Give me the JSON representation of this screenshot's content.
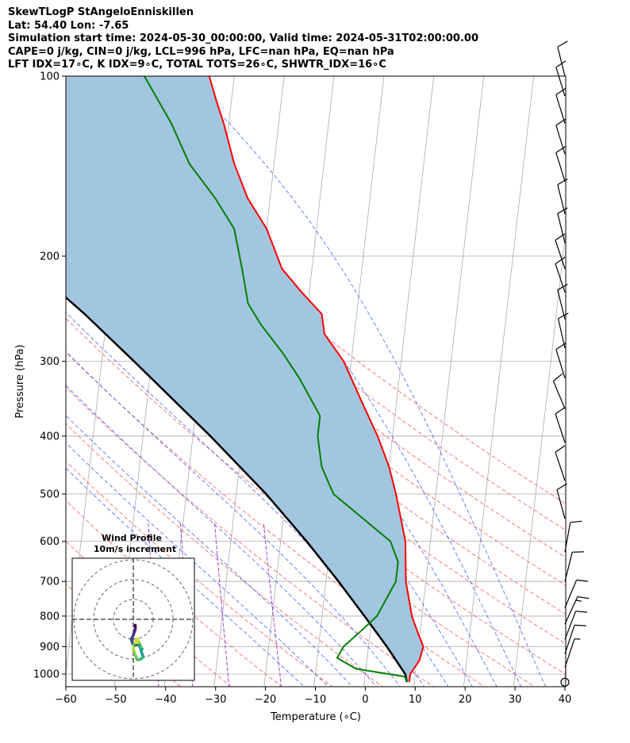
{
  "header": {
    "line1": "SkewTLogP StAngeloEnniskillen",
    "line2": "Lat: 54.40   Lon: -7.65",
    "line3": "Simulation start time: 2024-05-30_00:00:00, Valid time: 2024-05-31T02:00:00.00",
    "line4": "CAPE=0 j/kg, CIN=0 j/kg, LCL=996 hPa, LFC=nan hPa, EQ=nan hPa",
    "line5": "LFT IDX=17∘C, K IDX=9∘C, TOTAL TOTS=26∘C, SHWTR_IDX=16∘C"
  },
  "chart_data": [
    {
      "type": "line",
      "title": "",
      "xlabel": "Temperature (∘C)",
      "ylabel": "Pressure (hPa)",
      "xlim": [
        -60,
        40
      ],
      "ylim": [
        1050,
        100
      ],
      "y_scale": "log",
      "skew": "skew-T",
      "grid": true,
      "x_ticks": [
        "−60",
        "−50",
        "−40",
        "−30",
        "−20",
        "−10",
        "0",
        "10",
        "20",
        "30",
        "40"
      ],
      "y_ticks": [
        "100",
        "200",
        "300",
        "400",
        "500",
        "600",
        "700",
        "800",
        "900",
        "1000"
      ],
      "colors": {
        "temperature": "#ff0000",
        "dewpoint": "#008000",
        "parcel": "#000000",
        "shade": "#a2c6e0",
        "dry_adiabat": "#ff5555",
        "moist_adiabat": "#3355ff",
        "mixing_ratio": "#9933cc",
        "isotherm": "#aaaaaa"
      },
      "series": [
        {
          "key": "temperature",
          "points": [
            [
              1032,
              9.0
            ],
            [
              1000,
              9.0
            ],
            [
              950,
              10.5
            ],
            [
              900,
              11.0
            ],
            [
              850,
              9.5
            ],
            [
              800,
              8.0
            ],
            [
              700,
              6.0
            ],
            [
              600,
              5.0
            ],
            [
              500,
              2.0
            ],
            [
              450,
              0.0
            ],
            [
              400,
              -3.0
            ],
            [
              350,
              -7.0
            ],
            [
              300,
              -11.5
            ],
            [
              270,
              -16.0
            ],
            [
              250,
              -17.0
            ],
            [
              230,
              -21.5
            ],
            [
              210,
              -26.0
            ],
            [
              180,
              -30.0
            ],
            [
              160,
              -34.5
            ],
            [
              140,
              -38.0
            ],
            [
              120,
              -41.0
            ],
            [
              110,
              -43.0
            ],
            [
              100,
              -45.0
            ]
          ]
        },
        {
          "key": "dewpoint",
          "points": [
            [
              1032,
              8.5
            ],
            [
              1010,
              8.0
            ],
            [
              980,
              -2.0
            ],
            [
              940,
              -6.0
            ],
            [
              900,
              -5.0
            ],
            [
              850,
              -2.0
            ],
            [
              800,
              1.0
            ],
            [
              700,
              4.0
            ],
            [
              650,
              4.0
            ],
            [
              600,
              2.0
            ],
            [
              500,
              -10.5
            ],
            [
              450,
              -13.5
            ],
            [
              400,
              -15.0
            ],
            [
              370,
              -15.0
            ],
            [
              320,
              -20.0
            ],
            [
              290,
              -24.0
            ],
            [
              260,
              -29.0
            ],
            [
              240,
              -32.0
            ],
            [
              210,
              -34.0
            ],
            [
              180,
              -36.5
            ],
            [
              160,
              -41.0
            ],
            [
              140,
              -47.0
            ],
            [
              120,
              -51.5
            ],
            [
              100,
              -58.0
            ]
          ]
        },
        {
          "key": "parcel",
          "points": [
            [
              1032,
              8.5
            ],
            [
              1000,
              8.0
            ],
            [
              900,
              3.7
            ],
            [
              800,
              -1.5
            ],
            [
              700,
              -7.5
            ],
            [
              600,
              -14.8
            ],
            [
              500,
              -24.0
            ],
            [
              400,
              -36.5
            ],
            [
              300,
              -53.5
            ],
            [
              250,
              -64.5
            ],
            [
              200,
              -79.0
            ],
            [
              150,
              -99.0
            ],
            [
              100,
              -128.0
            ]
          ]
        }
      ],
      "background_lines": {
        "isotherms_c": [
          -150,
          -140,
          -130,
          -120,
          -110,
          -100,
          -90,
          -80,
          -70,
          -60,
          -50,
          -40,
          -30,
          -20,
          -10,
          0,
          10,
          20,
          30,
          40
        ],
        "dry_adiabats_c": [
          -40,
          -30,
          -20,
          -10,
          0,
          10,
          20,
          30,
          40,
          50,
          60,
          70,
          80,
          90,
          100
        ],
        "moist_adiabats_c": [
          -15,
          -10,
          -5,
          0,
          5,
          10,
          15,
          20,
          25,
          30,
          35
        ],
        "mixing_ratios_gkg": [
          0.1,
          0.2,
          0.4,
          1
        ]
      },
      "wind_barbs": [
        {
          "p": 1032,
          "calm": true
        },
        {
          "p": 975,
          "u": 3,
          "v": 9,
          "knots": 8
        },
        {
          "p": 925,
          "u": 4,
          "v": 12,
          "knots": 12
        },
        {
          "p": 875,
          "u": 5,
          "v": 13,
          "knots": 14
        },
        {
          "p": 825,
          "u": 6,
          "v": 13,
          "knots": 15
        },
        {
          "p": 775,
          "u": 5,
          "v": 12,
          "knots": 13
        },
        {
          "p": 700,
          "u": 3,
          "v": 12,
          "knots": 13
        },
        {
          "p": 625,
          "u": 2,
          "v": 11,
          "knots": 12
        },
        {
          "p": 550,
          "u": -3,
          "v": 11,
          "knots": 12
        },
        {
          "p": 475,
          "u": -4,
          "v": 12,
          "knots": 13
        },
        {
          "p": 410,
          "u": -4,
          "v": 12,
          "knots": 13
        },
        {
          "p": 360,
          "u": -5,
          "v": 12,
          "knots": 14
        },
        {
          "p": 320,
          "u": -4,
          "v": 13,
          "knots": 14
        },
        {
          "p": 285,
          "u": -3,
          "v": 13,
          "knots": 14
        },
        {
          "p": 255,
          "u": -3,
          "v": 12,
          "knots": 13
        },
        {
          "p": 230,
          "u": -4,
          "v": 12,
          "knots": 13
        },
        {
          "p": 210,
          "u": -4,
          "v": 12,
          "knots": 13
        },
        {
          "p": 190,
          "u": -3,
          "v": 12,
          "knots": 13
        },
        {
          "p": 170,
          "u": -3,
          "v": 12,
          "knots": 13
        },
        {
          "p": 150,
          "u": -4,
          "v": 13,
          "knots": 14
        },
        {
          "p": 135,
          "u": -4,
          "v": 13,
          "knots": 14
        },
        {
          "p": 120,
          "u": -4,
          "v": 13,
          "knots": 14
        },
        {
          "p": 108,
          "u": -4,
          "v": 13,
          "knots": 14
        },
        {
          "p": 100,
          "u": -3,
          "v": 12,
          "knots": 13
        }
      ]
    },
    {
      "type": "scatter",
      "title": "Wind Profile",
      "subtitle": "10m/s increment",
      "ring_radii_ms": [
        10,
        20,
        30
      ],
      "hodograph_points": [
        {
          "u": 1,
          "v": -3,
          "color": "#440154"
        },
        {
          "u": 1,
          "v": -5,
          "color": "#45267a"
        },
        {
          "u": 0,
          "v": -8,
          "color": "#443983"
        },
        {
          "u": -1,
          "v": -10,
          "color": "#3b528b"
        },
        {
          "u": -0.5,
          "v": -12,
          "color": "#31688e"
        },
        {
          "u": 1,
          "v": -13,
          "color": "#2c728e"
        },
        {
          "u": 3,
          "v": -13,
          "color": "#21918c"
        },
        {
          "u": 4,
          "v": -16,
          "color": "#1fa088"
        },
        {
          "u": 5,
          "v": -19,
          "color": "#28ae80"
        },
        {
          "u": 4,
          "v": -20,
          "color": "#3fbc73"
        },
        {
          "u": 2,
          "v": -20.5,
          "color": "#5ec962"
        },
        {
          "u": 1,
          "v": -18,
          "color": "#84d44b"
        },
        {
          "u": 0,
          "v": -15,
          "color": "#addc30"
        },
        {
          "u": 1,
          "v": -12,
          "color": "#c8e020"
        },
        {
          "u": 2,
          "v": -10,
          "color": "#d8e219"
        },
        {
          "u": 3,
          "v": -12,
          "color": "#6cce59"
        },
        {
          "u": 4.5,
          "v": -15,
          "color": "#1f9e89"
        }
      ]
    }
  ]
}
